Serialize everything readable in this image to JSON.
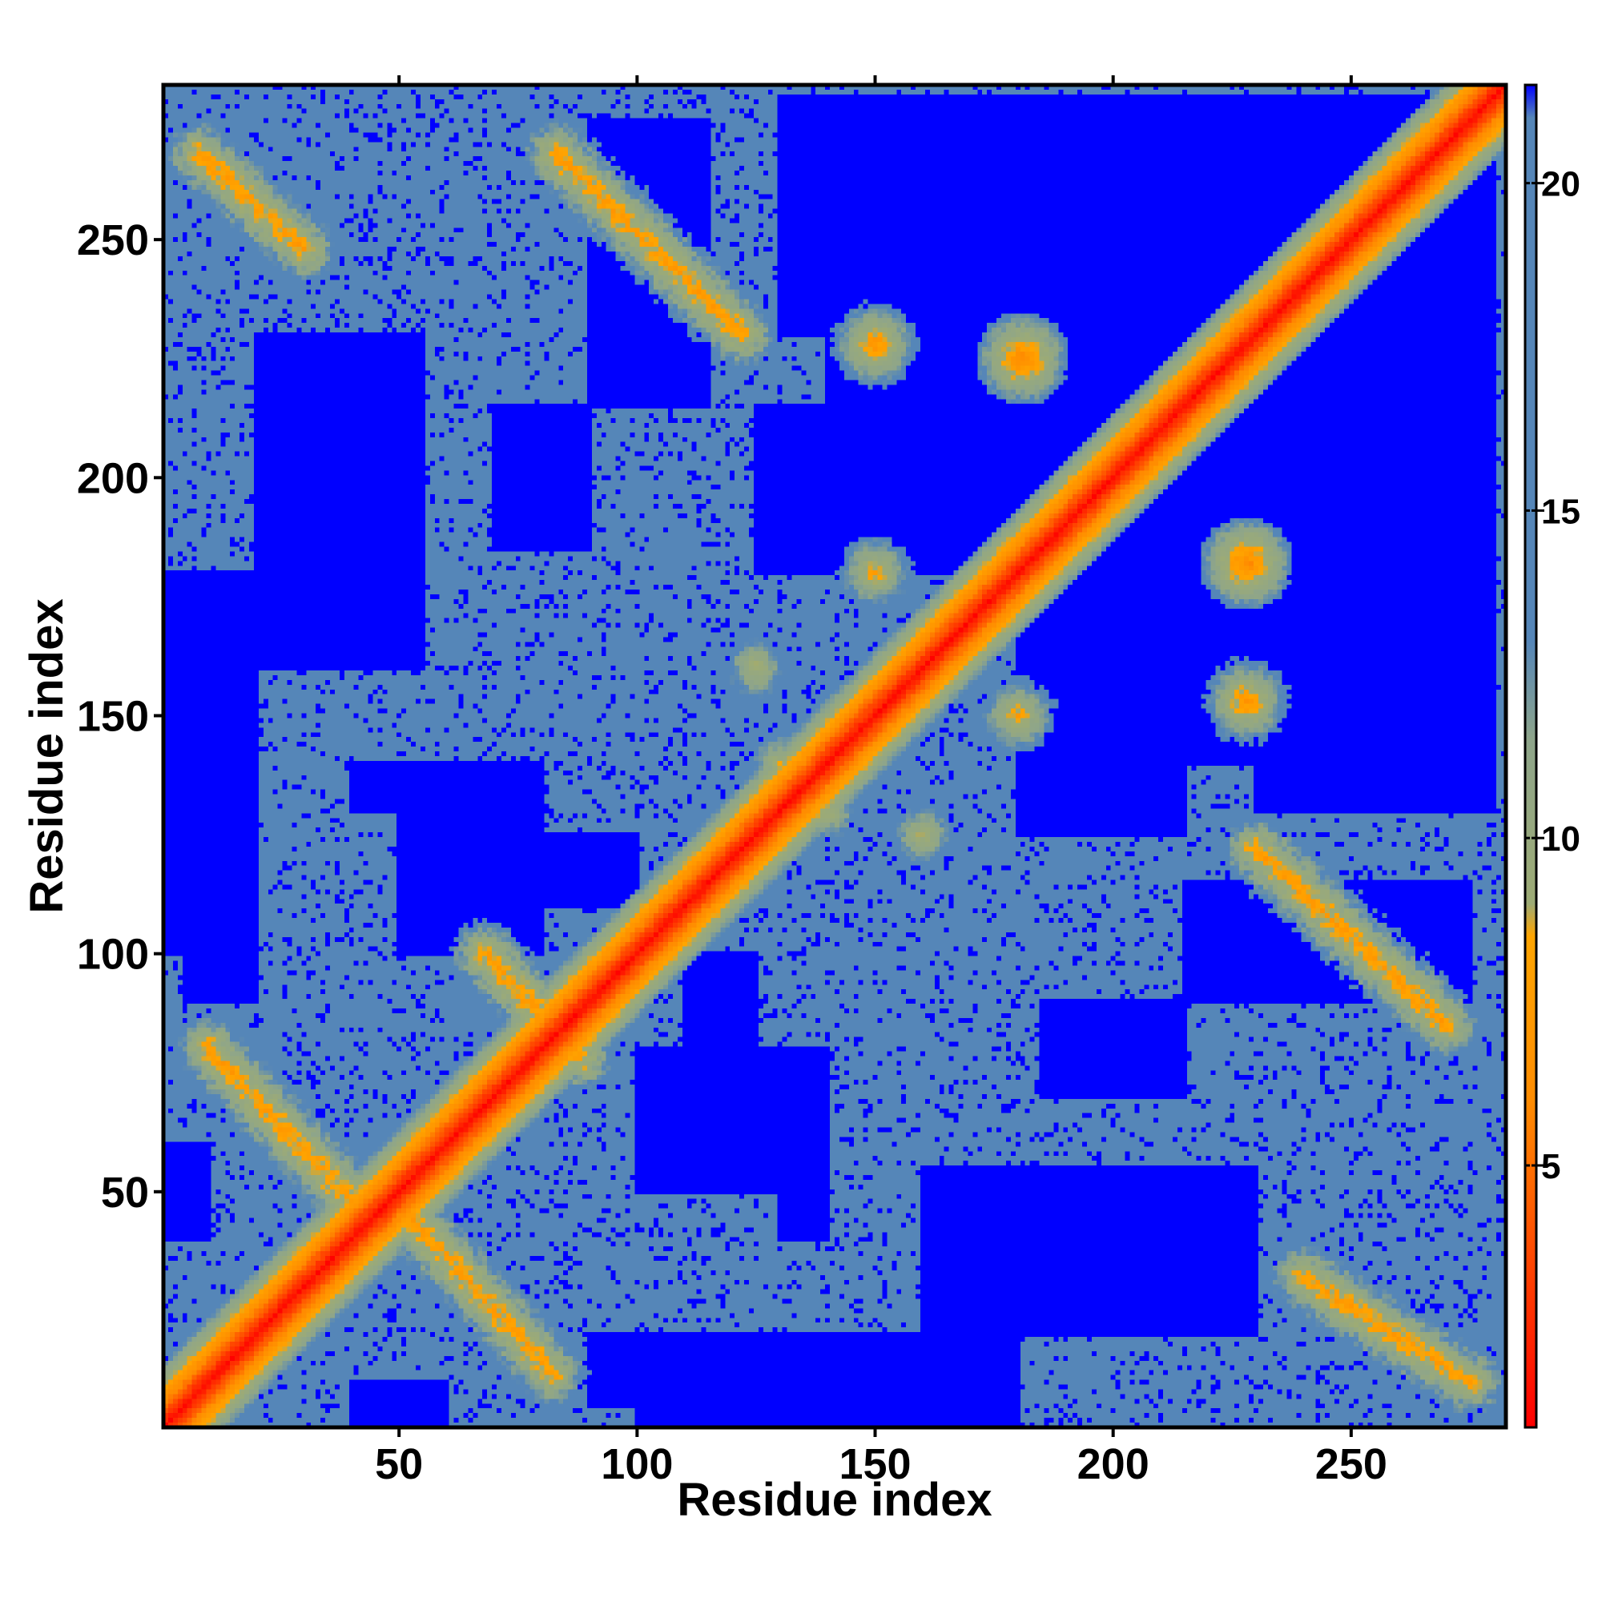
{
  "chart_data": {
    "type": "heatmap",
    "title": "",
    "xlabel": "Residue index",
    "ylabel": "Residue index",
    "n_residues": 282,
    "xlim": [
      1,
      282
    ],
    "ylim": [
      1,
      282
    ],
    "x_ticks": [
      50,
      100,
      150,
      200,
      250
    ],
    "y_ticks": [
      50,
      100,
      150,
      200,
      250
    ],
    "x_tick_labels": [
      "50",
      "100",
      "150",
      "200",
      "250"
    ],
    "y_tick_labels": [
      "50",
      "100",
      "150",
      "200",
      "250"
    ],
    "colorbar": {
      "range": [
        1,
        21.5
      ],
      "ticks": [
        5,
        10,
        15,
        20
      ],
      "tick_labels": [
        "5",
        "10",
        "15",
        "20"
      ],
      "stops": [
        {
          "value": 1.0,
          "color": "#ff0000"
        },
        {
          "value": 3.5,
          "color": "#ff4500"
        },
        {
          "value": 6.0,
          "color": "#ff8c00"
        },
        {
          "value": 8.5,
          "color": "#ffa500"
        },
        {
          "value": 9.0,
          "color": "#9dab75"
        },
        {
          "value": 11.5,
          "color": "#8ea58a"
        },
        {
          "value": 13.0,
          "color": "#5586b8"
        },
        {
          "value": 21.0,
          "color": "#5586b8"
        },
        {
          "value": 21.5,
          "color": "#0000ff"
        }
      ],
      "cutoff_color": "#0000ff"
    },
    "diagonal": {
      "from": 1,
      "to": 282
    },
    "off_diagonal_bands": [
      {
        "name": "antiparallel 15-35 / 40-75",
        "x_start": 10,
        "y_start": 80,
        "x_end": 40,
        "y_end": 48
      },
      {
        "name": "antiparallel 52-80 / 12-45",
        "x_start": 52,
        "y_start": 45,
        "x_end": 82,
        "y_end": 12
      },
      {
        "name": "antiparallel 75-88 / 80-100",
        "x_start": 68,
        "y_start": 100,
        "x_end": 88,
        "y_end": 78
      },
      {
        "name": "antiparallel 85-120 / 265-230",
        "x_start": 83,
        "y_start": 268,
        "x_end": 122,
        "y_end": 230
      },
      {
        "name": "antiparallel 10-30 / 265-250",
        "x_start": 8,
        "y_start": 268,
        "x_end": 30,
        "y_end": 248
      },
      {
        "name": "antiparallel 230-270 / 120-85",
        "x_start": 230,
        "y_start": 122,
        "x_end": 270,
        "y_end": 85
      },
      {
        "name": "antiparallel 240-275 / 30-10",
        "x_start": 240,
        "y_start": 32,
        "x_end": 275,
        "y_end": 10
      }
    ],
    "contact_spots": [
      {
        "x": 150,
        "y": 228,
        "value": 6
      },
      {
        "x": 181,
        "y": 225,
        "value": 5
      },
      {
        "x": 228,
        "y": 182,
        "value": 5
      },
      {
        "x": 228,
        "y": 153,
        "value": 6
      },
      {
        "x": 150,
        "y": 180,
        "value": 7
      },
      {
        "x": 180,
        "y": 150,
        "value": 7
      },
      {
        "x": 160,
        "y": 125,
        "value": 8
      },
      {
        "x": 125,
        "y": 160,
        "value": 8
      },
      {
        "x": 140,
        "y": 130,
        "value": 8
      },
      {
        "x": 130,
        "y": 140,
        "value": 8
      }
    ],
    "low_background_regions": [
      {
        "x": [
          40,
          55
        ],
        "y": [
          165,
          215
        ]
      },
      {
        "x": [
          90,
          115
        ],
        "y": [
          215,
          275
        ]
      },
      {
        "x": [
          125,
          190
        ],
        "y": [
          180,
          215
        ]
      },
      {
        "x": [
          190,
          280
        ],
        "y": [
          180,
          255
        ]
      },
      {
        "x": [
          180,
          230
        ],
        "y": [
          140,
          180
        ]
      },
      {
        "x": [
          230,
          280
        ],
        "y": [
          130,
          180
        ]
      },
      {
        "x": [
          240,
          280
        ],
        "y": [
          230,
          280
        ]
      },
      {
        "x": [
          170,
          230
        ],
        "y": [
          260,
          280
        ]
      },
      {
        "x": [
          1,
          20
        ],
        "y": [
          100,
          180
        ]
      },
      {
        "x": [
          160,
          230
        ],
        "y": [
          20,
          55
        ]
      },
      {
        "x": [
          185,
          215
        ],
        "y": [
          70,
          90
        ]
      },
      {
        "x": [
          100,
          140
        ],
        "y": [
          50,
          80
        ]
      },
      {
        "x": [
          80,
          100
        ],
        "y": [
          110,
          125
        ]
      },
      {
        "x": [
          40,
          60
        ],
        "y": [
          130,
          140
        ]
      },
      {
        "x": [
          1,
          10
        ],
        "y": [
          40,
          60
        ]
      },
      {
        "x": [
          90,
          150
        ],
        "y": [
          5,
          20
        ]
      }
    ]
  }
}
